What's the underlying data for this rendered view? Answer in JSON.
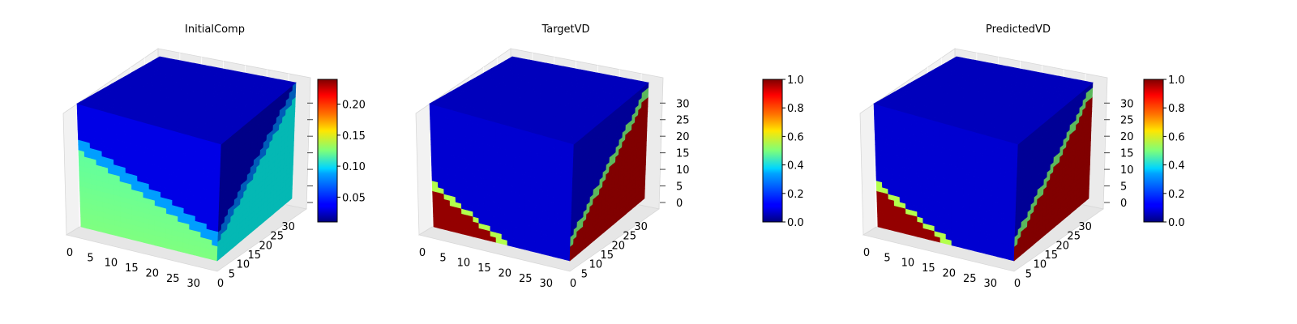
{
  "chart_data": [
    {
      "type": "heatmap",
      "title": "InitialComp",
      "xlabel": "",
      "ylabel": "",
      "zlabel": "",
      "x_ticks": [
        0,
        5,
        10,
        15,
        20,
        25,
        30
      ],
      "y_ticks": [
        0,
        5,
        10,
        15,
        20,
        25,
        30
      ],
      "z_ticks": [],
      "colormap": "jet",
      "colorbar": {
        "ticks": [
          0.05,
          0.1,
          0.15,
          0.2
        ],
        "tick_labels": [
          "0.05",
          "0.10",
          "0.15",
          "0.20"
        ],
        "min": 0.01,
        "max": 0.24
      },
      "face_pattern": "initial"
    },
    {
      "type": "heatmap",
      "title": "TargetVD",
      "xlabel": "",
      "ylabel": "",
      "zlabel": "",
      "x_ticks": [
        0,
        5,
        10,
        15,
        20,
        25,
        30
      ],
      "y_ticks": [
        0,
        5,
        10,
        15,
        20,
        25,
        30
      ],
      "z_ticks": [
        0,
        5,
        10,
        15,
        20,
        25,
        30
      ],
      "colormap": "jet",
      "colorbar": {
        "ticks": [
          0.0,
          0.2,
          0.4,
          0.6,
          0.8,
          1.0
        ],
        "tick_labels": [
          "0.0",
          "0.2",
          "0.4",
          "0.6",
          "0.8",
          "1.0"
        ],
        "min": 0.0,
        "max": 1.0
      },
      "face_pattern": "vd"
    },
    {
      "type": "heatmap",
      "title": "PredictedVD",
      "xlabel": "",
      "ylabel": "",
      "zlabel": "",
      "x_ticks": [
        0,
        5,
        10,
        15,
        20,
        25,
        30
      ],
      "y_ticks": [
        0,
        5,
        10,
        15,
        20,
        25,
        30
      ],
      "z_ticks": [
        0,
        5,
        10,
        15,
        20,
        25,
        30
      ],
      "colormap": "jet",
      "colorbar": {
        "ticks": [
          0.0,
          0.2,
          0.4,
          0.6,
          0.8,
          1.0
        ],
        "tick_labels": [
          "0.0",
          "0.2",
          "0.4",
          "0.6",
          "0.8",
          "1.0"
        ],
        "min": 0.0,
        "max": 1.0
      },
      "face_pattern": "vd"
    }
  ]
}
